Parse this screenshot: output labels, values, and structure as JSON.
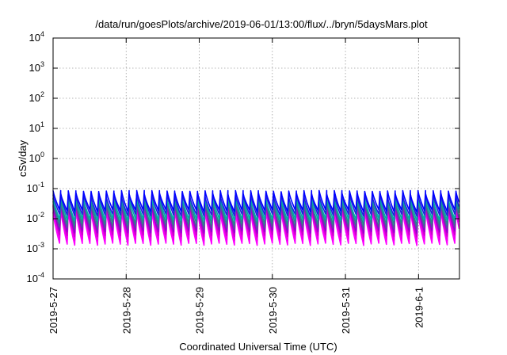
{
  "chart_data": {
    "type": "line",
    "title": "/data/run/goesPlots/archive/2019-06-01/13:00/flux/../bryn/5daysMars.plot",
    "xlabel": "Coordinated Universal Time (UTC)",
    "ylabel": "cSv/day",
    "y_scale": "log",
    "ylim": [
      0.0001,
      10000
    ],
    "y_ticks": [
      {
        "base": "10",
        "exp": "-4",
        "value": 0.0001
      },
      {
        "base": "10",
        "exp": "-3",
        "value": 0.001
      },
      {
        "base": "10",
        "exp": "-2",
        "value": 0.01
      },
      {
        "base": "10",
        "exp": "-1",
        "value": 0.1
      },
      {
        "base": "10",
        "exp": "0",
        "value": 1
      },
      {
        "base": "10",
        "exp": "1",
        "value": 10
      },
      {
        "base": "10",
        "exp": "2",
        "value": 100
      },
      {
        "base": "10",
        "exp": "3",
        "value": 1000
      },
      {
        "base": "10",
        "exp": "4",
        "value": 10000
      }
    ],
    "x_ticks": [
      {
        "label": "2019-5-27",
        "value": 0
      },
      {
        "label": "2019-5-28",
        "value": 1
      },
      {
        "label": "2019-5-29",
        "value": 2
      },
      {
        "label": "2019-5-30",
        "value": 3
      },
      {
        "label": "2019-5-31",
        "value": 4
      },
      {
        "label": "2019-6-1",
        "value": 5
      }
    ],
    "xlim": [
      "2019-5-27",
      "2019-6-1 ~13:00"
    ],
    "grid": true,
    "legend": "none",
    "pattern": {
      "description_values_only": true,
      "period_days": 0.104,
      "series_count": 9
    },
    "series": [
      {
        "color": "#0000ff",
        "peak": 0.075,
        "trough": 0.018
      },
      {
        "color": "#2222dd",
        "peak": 0.06,
        "trough": 0.013
      },
      {
        "color": "#00aaaa",
        "peak": 0.05,
        "trough": 0.009
      },
      {
        "color": "#228b8b",
        "peak": 0.042,
        "trough": 0.0065
      },
      {
        "color": "#555599",
        "peak": 0.035,
        "trough": 0.0048
      },
      {
        "color": "#9400d3",
        "peak": 0.03,
        "trough": 0.0036
      },
      {
        "color": "#cc00cc",
        "peak": 0.026,
        "trough": 0.0027
      },
      {
        "color": "#ee00ee",
        "peak": 0.022,
        "trough": 0.002
      },
      {
        "color": "#ff00ff",
        "peak": 0.019,
        "trough": 0.0014
      }
    ]
  }
}
